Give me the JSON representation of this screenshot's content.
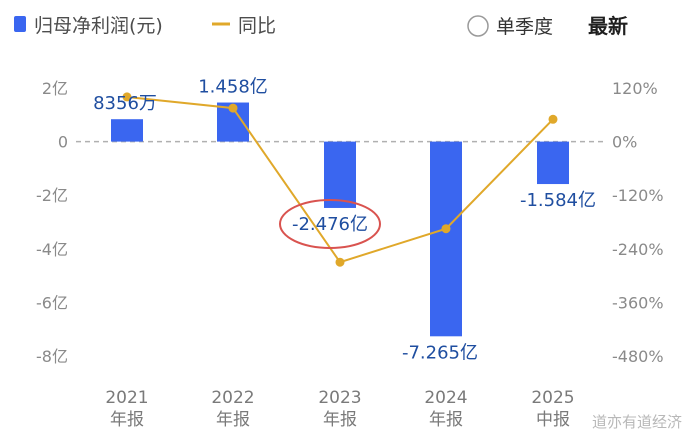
{
  "legend": {
    "bar_label": "归母净利润(元)",
    "line_label": "同比"
  },
  "controls": {
    "quarter_label": "单季度",
    "latest_label": "最新"
  },
  "watermark": "道亦有道经济",
  "colors": {
    "bar": "#3a66f0",
    "line": "#e0a82a",
    "highlight_circle": "#d9534f",
    "zero_line": "#b0b0b0"
  },
  "chart_data": {
    "type": "bar",
    "categories": [
      {
        "year": "2021",
        "period": "年报"
      },
      {
        "year": "2022",
        "period": "年报"
      },
      {
        "year": "2023",
        "period": "年报"
      },
      {
        "year": "2024",
        "period": "年报"
      },
      {
        "year": "2025",
        "period": "中报"
      }
    ],
    "series": [
      {
        "name": "归母净利润(元)",
        "type": "bar",
        "axis": "left",
        "values": [
          83560000,
          145800000,
          -247600000,
          -726500000,
          -158400000
        ],
        "labels": [
          "8356万",
          "1.458亿",
          "-2.476亿",
          "-7.265亿",
          "-1.584亿"
        ]
      },
      {
        "name": "同比",
        "type": "line",
        "axis": "right",
        "values": [
          100,
          75,
          -270,
          -195,
          50
        ]
      }
    ],
    "left_axis": {
      "ticks": [
        "2亿",
        "0",
        "-2亿",
        "-4亿",
        "-6亿",
        "-8亿"
      ],
      "tick_values": [
        200000000,
        0,
        -200000000,
        -400000000,
        -600000000,
        -800000000
      ],
      "range": [
        -800000000,
        200000000
      ]
    },
    "right_axis": {
      "ticks": [
        "120%",
        "0%",
        "-120%",
        "-240%",
        "-360%",
        "-480%"
      ],
      "tick_values": [
        120,
        0,
        -120,
        -240,
        -360,
        -480
      ],
      "range": [
        -480,
        120
      ]
    },
    "highlighted_category": "2023"
  }
}
